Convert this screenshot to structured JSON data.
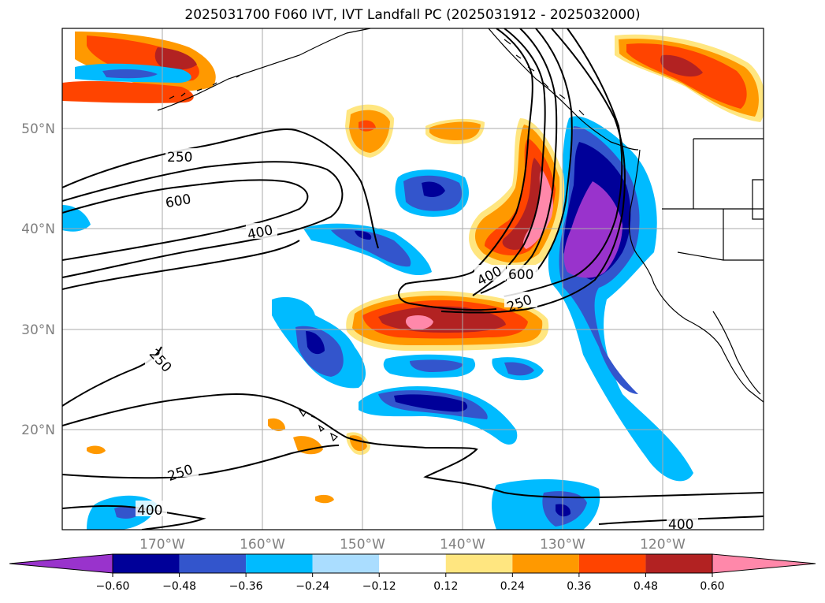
{
  "title": "2025031700 F060 IVT, IVT Landfall PC (2025031912 - 2025032000)",
  "lat_labels": [
    "50°N",
    "40°N",
    "30°N",
    "20°N"
  ],
  "lon_labels": [
    "170°W",
    "160°W",
    "150°W",
    "140°W",
    "130°W",
    "120°W"
  ],
  "contour_labels": [
    "250",
    "600",
    "400",
    "400",
    "600",
    "250",
    "250",
    "250",
    "400",
    "400"
  ],
  "colorbar": {
    "ticks": [
      "−0.60",
      "−0.48",
      "−0.36",
      "−0.24",
      "−0.12",
      "0.12",
      "0.24",
      "0.36",
      "0.48",
      "0.60"
    ],
    "colors": [
      "#9933cc",
      "#000099",
      "#3355cc",
      "#00bbff",
      "#aaddff",
      "#ffffff",
      "#ffe680",
      "#ff9900",
      "#ff4400",
      "#b22222",
      "#ff88aa"
    ]
  },
  "chart_data": {
    "type": "contour map",
    "title": "2025031700 F060 IVT, IVT Landfall PC (2025031912 - 2025032000)",
    "xlim": [
      -180,
      -110
    ],
    "ylim": [
      10,
      60
    ],
    "x_ticks": [
      "170°W",
      "160°W",
      "150°W",
      "140°W",
      "130°W",
      "120°W"
    ],
    "y_ticks": [
      "50°N",
      "40°N",
      "30°N",
      "20°N"
    ],
    "grid": true,
    "ivt_contour_levels": [
      250,
      400,
      600
    ],
    "colorbar_levels": [
      -0.6,
      -0.48,
      -0.36,
      -0.24,
      -0.12,
      0.12,
      0.24,
      0.36,
      0.48,
      0.6
    ],
    "colorbar_extend": "both",
    "colorbar_position": "bottom"
  }
}
